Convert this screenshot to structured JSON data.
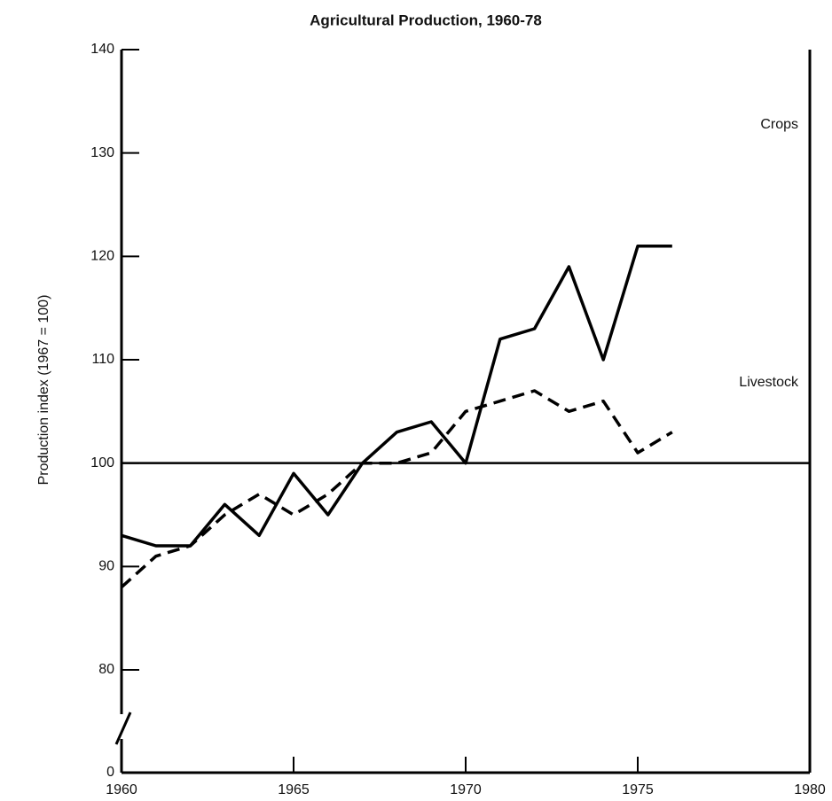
{
  "chart_data": {
    "type": "line",
    "title": "Agricultural Production, 1960-78",
    "y_label": "Production index (1967 = 100)",
    "x": [
      1960,
      1961,
      1962,
      1963,
      1964,
      1965,
      1966,
      1967,
      1968,
      1969,
      1970,
      1971,
      1972,
      1973,
      1974,
      1975,
      1976
    ],
    "series": [
      {
        "name": "Crops",
        "color": "#000000",
        "dash": false,
        "values": [
          93,
          92,
          92,
          96,
          93,
          99,
          95,
          100,
          103,
          104,
          100,
          112,
          113,
          119,
          110,
          121,
          121
        ]
      },
      {
        "name": "Livestock",
        "color": "#000000",
        "dash": true,
        "values": [
          88,
          91,
          92,
          95,
          97,
          95,
          97,
          100,
          100,
          101,
          105,
          106,
          107,
          105,
          106,
          101,
          103
        ]
      }
    ],
    "xlim": [
      1960,
      1980
    ],
    "xticks": [
      1960,
      1965,
      1970,
      1975,
      1980
    ],
    "ylim": [
      0,
      140
    ],
    "yticks": [
      0,
      80,
      90,
      100,
      110,
      120,
      130,
      140
    ],
    "y_break": [
      0,
      80
    ],
    "reference_line": 100,
    "grid": false
  }
}
